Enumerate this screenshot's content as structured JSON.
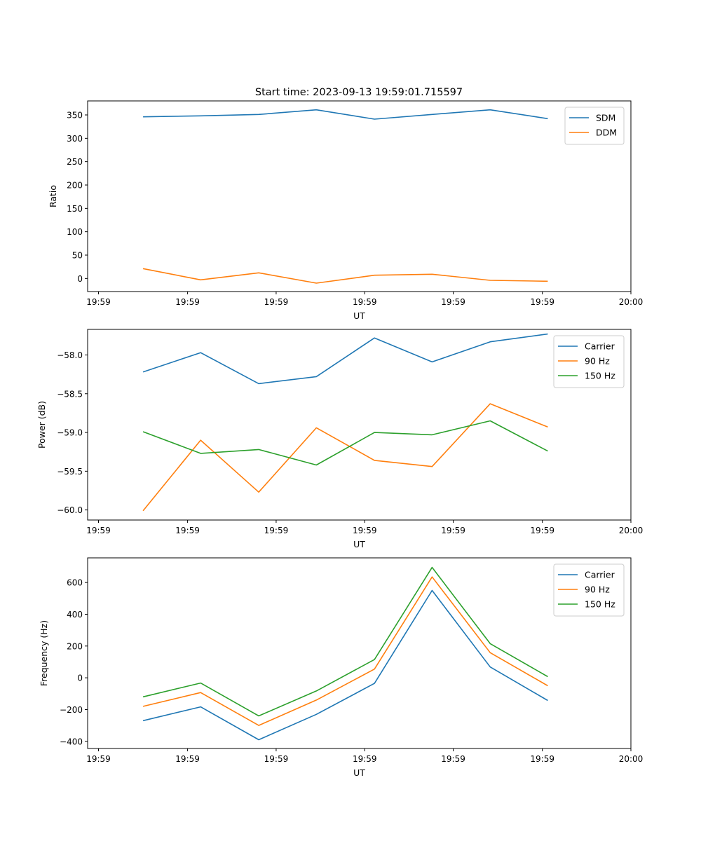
{
  "figure": {
    "title": "Start time: 2023-09-13 19:59:01.715597"
  },
  "chart_data": [
    {
      "type": "line",
      "title": "Start time: 2023-09-13 19:59:01.715597",
      "xlabel": "UT",
      "ylabel": "Ratio",
      "xlim": [
        0,
        1
      ],
      "ylim": [
        -28,
        380
      ],
      "xticks": [
        0.02,
        0.184,
        0.347,
        0.51,
        0.673,
        0.837,
        1.0
      ],
      "xtick_labels": [
        "19:59",
        "19:59",
        "19:59",
        "19:59",
        "19:59",
        "19:59",
        "20:00"
      ],
      "yticks": [
        0,
        50,
        100,
        150,
        200,
        250,
        300,
        350
      ],
      "ytick_labels": [
        "0",
        "50",
        "100",
        "150",
        "200",
        "250",
        "300",
        "350"
      ],
      "x": [
        0.102,
        0.208,
        0.315,
        0.421,
        0.528,
        0.634,
        0.741,
        0.847
      ],
      "series": [
        {
          "name": "SDM",
          "color": "#1f77b4",
          "values": [
            346,
            348,
            351,
            361,
            341,
            351,
            361,
            342
          ]
        },
        {
          "name": "DDM",
          "color": "#ff7f0e",
          "values": [
            21,
            -3,
            12,
            -10,
            7,
            9,
            -4,
            -6
          ]
        }
      ],
      "legend": "top-right"
    },
    {
      "type": "line",
      "xlabel": "UT",
      "ylabel": "Power (dB)",
      "xlim": [
        0,
        1
      ],
      "ylim": [
        -60.13,
        -57.67
      ],
      "xticks": [
        0.02,
        0.184,
        0.347,
        0.51,
        0.673,
        0.837,
        1.0
      ],
      "xtick_labels": [
        "19:59",
        "19:59",
        "19:59",
        "19:59",
        "19:59",
        "19:59",
        "20:00"
      ],
      "yticks": [
        -60.0,
        -59.5,
        -59.0,
        -58.5,
        -58.0
      ],
      "ytick_labels": [
        "−60.0",
        "−59.5",
        "−59.0",
        "−58.5",
        "−58.0"
      ],
      "x": [
        0.102,
        0.208,
        0.315,
        0.421,
        0.528,
        0.634,
        0.741,
        0.847
      ],
      "series": [
        {
          "name": "Carrier",
          "color": "#1f77b4",
          "values": [
            -58.22,
            -57.97,
            -58.37,
            -58.28,
            -57.78,
            -58.09,
            -57.83,
            -57.73
          ]
        },
        {
          "name": "90 Hz",
          "color": "#ff7f0e",
          "values": [
            -60.01,
            -59.1,
            -59.77,
            -58.94,
            -59.36,
            -59.44,
            -58.63,
            -58.93
          ]
        },
        {
          "name": "150 Hz",
          "color": "#2ca02c",
          "values": [
            -58.99,
            -59.27,
            -59.22,
            -59.42,
            -59.0,
            -59.03,
            -58.85,
            -59.24
          ]
        }
      ],
      "legend": "top-right"
    },
    {
      "type": "line",
      "xlabel": "UT",
      "ylabel": "Frequency (Hz)",
      "xlim": [
        0,
        1
      ],
      "ylim": [
        -445,
        755
      ],
      "xticks": [
        0.02,
        0.184,
        0.347,
        0.51,
        0.673,
        0.837,
        1.0
      ],
      "xtick_labels": [
        "19:59",
        "19:59",
        "19:59",
        "19:59",
        "19:59",
        "19:59",
        "20:00"
      ],
      "yticks": [
        -400,
        -200,
        0,
        200,
        400,
        600
      ],
      "ytick_labels": [
        "−400",
        "−200",
        "0",
        "200",
        "400",
        "600"
      ],
      "x": [
        0.102,
        0.208,
        0.315,
        0.421,
        0.528,
        0.634,
        0.741,
        0.847
      ],
      "series": [
        {
          "name": "Carrier",
          "color": "#1f77b4",
          "values": [
            -270,
            -183,
            -390,
            -230,
            -35,
            550,
            68,
            -143
          ]
        },
        {
          "name": "90 Hz",
          "color": "#ff7f0e",
          "values": [
            -180,
            -93,
            -300,
            -140,
            55,
            635,
            158,
            -50
          ]
        },
        {
          "name": "150 Hz",
          "color": "#2ca02c",
          "values": [
            -120,
            -33,
            -240,
            -83,
            115,
            695,
            215,
            7
          ]
        }
      ],
      "legend": "top-right"
    }
  ]
}
